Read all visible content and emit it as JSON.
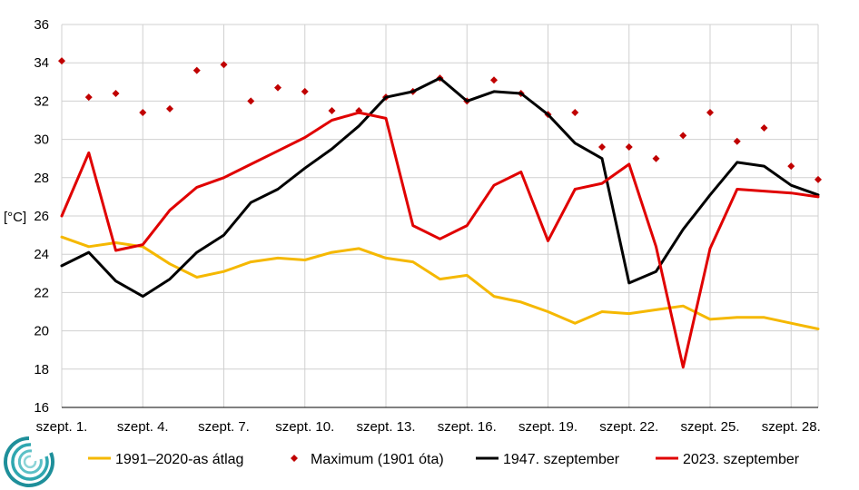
{
  "chart_data": {
    "type": "line",
    "ylabel": "[°C]",
    "ylim": [
      16,
      36
    ],
    "yticks": [
      16,
      18,
      20,
      22,
      24,
      26,
      28,
      30,
      32,
      34,
      36
    ],
    "x": [
      1,
      2,
      3,
      4,
      5,
      6,
      7,
      8,
      9,
      10,
      11,
      12,
      13,
      14,
      15,
      16,
      17,
      18,
      19,
      20,
      21,
      22,
      23,
      24,
      25,
      26,
      27,
      28,
      29
    ],
    "xticks": [
      {
        "day": 1,
        "label": "szept. 1."
      },
      {
        "day": 4,
        "label": "szept. 4."
      },
      {
        "day": 7,
        "label": "szept. 7."
      },
      {
        "day": 10,
        "label": "szept. 10."
      },
      {
        "day": 13,
        "label": "szept. 13."
      },
      {
        "day": 16,
        "label": "szept. 16."
      },
      {
        "day": 19,
        "label": "szept. 19."
      },
      {
        "day": 22,
        "label": "szept. 22."
      },
      {
        "day": 25,
        "label": "szept. 25."
      },
      {
        "day": 28,
        "label": "szept. 28."
      }
    ],
    "grid": true,
    "legend_position": "bottom",
    "series": [
      {
        "name": "1991–2020-as átlag",
        "style": "line",
        "color": "#f5b800",
        "values": [
          24.9,
          24.4,
          24.6,
          24.4,
          23.5,
          22.8,
          23.1,
          23.6,
          23.8,
          23.7,
          24.1,
          24.3,
          23.8,
          23.6,
          22.7,
          22.9,
          21.8,
          21.5,
          21.0,
          20.4,
          21.0,
          20.9,
          21.1,
          21.3,
          20.6,
          20.7,
          20.7,
          20.4,
          20.1
        ]
      },
      {
        "name": "Maximum (1901 óta)",
        "style": "marker",
        "color": "#c00000",
        "values": [
          34.1,
          32.2,
          32.4,
          31.4,
          31.6,
          33.6,
          33.9,
          32.0,
          32.7,
          32.5,
          31.5,
          31.5,
          32.2,
          32.5,
          33.2,
          32.0,
          33.1,
          32.4,
          31.3,
          31.4,
          29.6,
          29.6,
          29.0,
          30.2,
          31.4,
          29.9,
          30.6,
          28.6,
          27.9
        ]
      },
      {
        "name": "1947. szeptember",
        "style": "line",
        "color": "#000000",
        "values": [
          23.4,
          24.1,
          22.6,
          21.8,
          22.7,
          24.1,
          25.0,
          26.7,
          27.4,
          28.5,
          29.5,
          30.7,
          32.2,
          32.5,
          33.2,
          32.0,
          32.5,
          32.4,
          31.3,
          29.8,
          29.0,
          22.5,
          23.1,
          25.3,
          27.1,
          28.8,
          28.6,
          27.6,
          27.1
        ]
      },
      {
        "name": "2023. szeptember",
        "style": "line",
        "color": "#e00000",
        "values": [
          26.0,
          29.3,
          24.2,
          24.5,
          26.3,
          27.5,
          28.0,
          28.7,
          29.4,
          30.1,
          31.0,
          31.4,
          31.1,
          25.5,
          24.8,
          25.5,
          27.6,
          28.3,
          24.7,
          27.4,
          27.7,
          28.7,
          24.4,
          18.1,
          24.3,
          27.4,
          27.3,
          27.2,
          27.0
        ]
      }
    ]
  },
  "logo": {
    "name": "logo-icon"
  }
}
